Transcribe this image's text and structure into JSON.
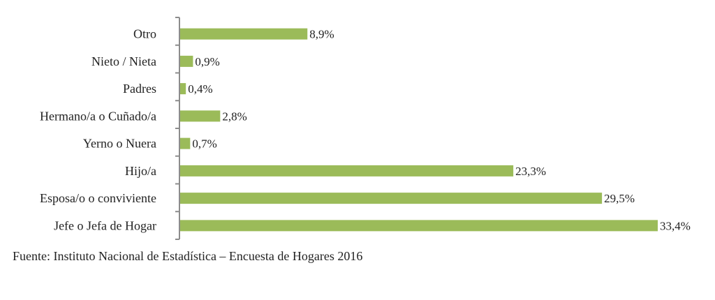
{
  "chart_data": {
    "type": "bar",
    "orientation": "horizontal",
    "categories": [
      "Otro",
      "Nieto / Nieta",
      "Padres",
      "Hermano/a o Cuñado/a",
      "Yerno o Nuera",
      "Hijo/a",
      "Esposa/o o conviviente",
      "Jefe o Jefa de Hogar"
    ],
    "values": [
      8.9,
      0.9,
      0.4,
      2.8,
      0.7,
      23.3,
      29.5,
      33.4
    ],
    "value_labels": [
      "8,9%",
      "0,9%",
      "0,4%",
      "2,8%",
      "0,7%",
      "23,3%",
      "29,5%",
      "33,4%"
    ],
    "xlim": [
      0,
      33.4
    ],
    "bar_color": "#9bbb59",
    "axis_color": "#8c8c8c",
    "grid": false,
    "legend": false
  },
  "source": "Fuente: Instituto Nacional de Estadística – Encuesta de Hogares 2016"
}
